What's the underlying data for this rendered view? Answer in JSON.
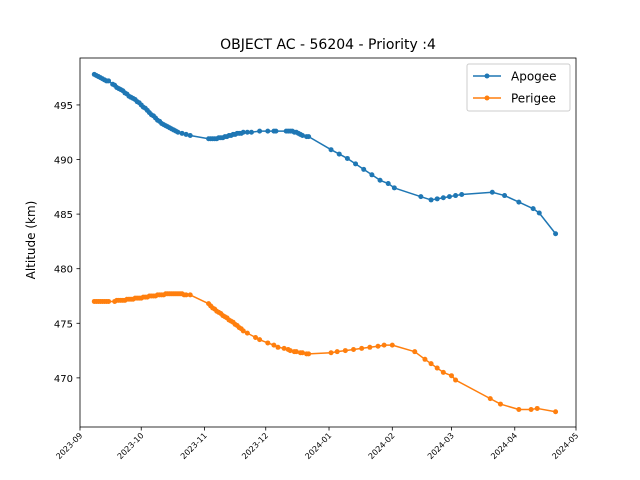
{
  "chart_data": {
    "type": "line",
    "title": "OBJECT AC - 56204 - Priority :4",
    "xlabel": "",
    "ylabel": "Altitude (km)",
    "x_axis_type": "date",
    "xlim": [
      "2023-09-01",
      "2024-05-01"
    ],
    "ylim": [
      465.5,
      499.3
    ],
    "x_ticks": [
      "2023-09",
      "2023-10",
      "2023-11",
      "2023-12",
      "2024-01",
      "2024-02",
      "2024-03",
      "2024-04",
      "2024-05"
    ],
    "y_ticks": [
      470,
      475,
      480,
      485,
      490,
      495
    ],
    "grid": false,
    "legend_position": "top-right",
    "series": [
      {
        "name": "Apogee",
        "color": "#1f77b4",
        "marker": "dot",
        "points": [
          [
            "2023-09-08",
            497.8
          ],
          [
            "2023-09-09",
            497.7
          ],
          [
            "2023-09-10",
            497.6
          ],
          [
            "2023-09-11",
            497.5
          ],
          [
            "2023-09-12",
            497.4
          ],
          [
            "2023-09-13",
            497.3
          ],
          [
            "2023-09-14",
            497.2
          ],
          [
            "2023-09-15",
            497.2
          ],
          [
            "2023-09-17",
            496.9
          ],
          [
            "2023-09-18",
            496.8
          ],
          [
            "2023-09-19",
            496.6
          ],
          [
            "2023-09-20",
            496.5
          ],
          [
            "2023-09-21",
            496.4
          ],
          [
            "2023-09-22",
            496.3
          ],
          [
            "2023-09-23",
            496.1
          ],
          [
            "2023-09-24",
            496.0
          ],
          [
            "2023-09-25",
            495.8
          ],
          [
            "2023-09-26",
            495.7
          ],
          [
            "2023-09-27",
            495.6
          ],
          [
            "2023-09-28",
            495.5
          ],
          [
            "2023-09-29",
            495.3
          ],
          [
            "2023-09-30",
            495.2
          ],
          [
            "2023-10-01",
            495.0
          ],
          [
            "2023-10-02",
            494.8
          ],
          [
            "2023-10-03",
            494.7
          ],
          [
            "2023-10-04",
            494.5
          ],
          [
            "2023-10-05",
            494.3
          ],
          [
            "2023-10-06",
            494.1
          ],
          [
            "2023-10-07",
            494.0
          ],
          [
            "2023-10-08",
            493.8
          ],
          [
            "2023-10-09",
            493.6
          ],
          [
            "2023-10-10",
            493.5
          ],
          [
            "2023-10-11",
            493.3
          ],
          [
            "2023-10-12",
            493.2
          ],
          [
            "2023-10-13",
            493.1
          ],
          [
            "2023-10-14",
            493.0
          ],
          [
            "2023-10-15",
            492.9
          ],
          [
            "2023-10-16",
            492.8
          ],
          [
            "2023-10-17",
            492.7
          ],
          [
            "2023-10-18",
            492.6
          ],
          [
            "2023-10-19",
            492.5
          ],
          [
            "2023-10-21",
            492.4
          ],
          [
            "2023-10-23",
            492.3
          ],
          [
            "2023-10-25",
            492.2
          ],
          [
            "2023-11-03",
            491.9
          ],
          [
            "2023-11-04",
            491.9
          ],
          [
            "2023-11-05",
            491.9
          ],
          [
            "2023-11-06",
            491.9
          ],
          [
            "2023-11-07",
            491.9
          ],
          [
            "2023-11-08",
            492.0
          ],
          [
            "2023-11-09",
            492.0
          ],
          [
            "2023-11-10",
            492.0
          ],
          [
            "2023-11-11",
            492.1
          ],
          [
            "2023-11-12",
            492.1
          ],
          [
            "2023-11-13",
            492.2
          ],
          [
            "2023-11-14",
            492.2
          ],
          [
            "2023-11-15",
            492.3
          ],
          [
            "2023-11-16",
            492.3
          ],
          [
            "2023-11-17",
            492.4
          ],
          [
            "2023-11-18",
            492.4
          ],
          [
            "2023-11-19",
            492.4
          ],
          [
            "2023-11-20",
            492.5
          ],
          [
            "2023-11-22",
            492.5
          ],
          [
            "2023-11-24",
            492.5
          ],
          [
            "2023-11-28",
            492.6
          ],
          [
            "2023-12-02",
            492.6
          ],
          [
            "2023-12-05",
            492.6
          ],
          [
            "2023-12-06",
            492.6
          ],
          [
            "2023-12-11",
            492.6
          ],
          [
            "2023-12-12",
            492.6
          ],
          [
            "2023-12-13",
            492.6
          ],
          [
            "2023-12-14",
            492.6
          ],
          [
            "2023-12-15",
            492.5
          ],
          [
            "2023-12-16",
            492.5
          ],
          [
            "2023-12-17",
            492.4
          ],
          [
            "2023-12-18",
            492.3
          ],
          [
            "2023-12-19",
            492.2
          ],
          [
            "2023-12-21",
            492.1
          ],
          [
            "2023-12-22",
            492.1
          ],
          [
            "2024-01-02",
            490.9
          ],
          [
            "2024-01-06",
            490.5
          ],
          [
            "2024-01-10",
            490.1
          ],
          [
            "2024-01-14",
            489.6
          ],
          [
            "2024-01-18",
            489.1
          ],
          [
            "2024-01-22",
            488.6
          ],
          [
            "2024-01-26",
            488.1
          ],
          [
            "2024-01-30",
            487.8
          ],
          [
            "2024-02-02",
            487.4
          ],
          [
            "2024-02-15",
            486.6
          ],
          [
            "2024-02-20",
            486.3
          ],
          [
            "2024-02-23",
            486.4
          ],
          [
            "2024-02-26",
            486.5
          ],
          [
            "2024-02-29",
            486.6
          ],
          [
            "2024-03-03",
            486.7
          ],
          [
            "2024-03-06",
            486.8
          ],
          [
            "2024-03-21",
            487.0
          ],
          [
            "2024-03-27",
            486.7
          ],
          [
            "2024-04-03",
            486.1
          ],
          [
            "2024-04-10",
            485.5
          ],
          [
            "2024-04-13",
            485.1
          ],
          [
            "2024-04-21",
            483.2
          ]
        ]
      },
      {
        "name": "Perigee",
        "color": "#ff7f0e",
        "marker": "dot",
        "points": [
          [
            "2023-09-08",
            477.0
          ],
          [
            "2023-09-09",
            477.0
          ],
          [
            "2023-09-10",
            477.0
          ],
          [
            "2023-09-11",
            477.0
          ],
          [
            "2023-09-12",
            477.0
          ],
          [
            "2023-09-13",
            477.0
          ],
          [
            "2023-09-14",
            477.0
          ],
          [
            "2023-09-15",
            477.0
          ],
          [
            "2023-09-18",
            477.0
          ],
          [
            "2023-09-19",
            477.1
          ],
          [
            "2023-09-20",
            477.1
          ],
          [
            "2023-09-21",
            477.1
          ],
          [
            "2023-09-22",
            477.1
          ],
          [
            "2023-09-23",
            477.1
          ],
          [
            "2023-09-24",
            477.2
          ],
          [
            "2023-09-25",
            477.2
          ],
          [
            "2023-09-26",
            477.2
          ],
          [
            "2023-09-27",
            477.2
          ],
          [
            "2023-09-28",
            477.3
          ],
          [
            "2023-09-29",
            477.3
          ],
          [
            "2023-09-30",
            477.3
          ],
          [
            "2023-10-01",
            477.3
          ],
          [
            "2023-10-02",
            477.4
          ],
          [
            "2023-10-03",
            477.4
          ],
          [
            "2023-10-04",
            477.4
          ],
          [
            "2023-10-05",
            477.5
          ],
          [
            "2023-10-06",
            477.5
          ],
          [
            "2023-10-07",
            477.5
          ],
          [
            "2023-10-08",
            477.5
          ],
          [
            "2023-10-09",
            477.6
          ],
          [
            "2023-10-10",
            477.6
          ],
          [
            "2023-10-11",
            477.6
          ],
          [
            "2023-10-12",
            477.6
          ],
          [
            "2023-10-13",
            477.7
          ],
          [
            "2023-10-14",
            477.7
          ],
          [
            "2023-10-15",
            477.7
          ],
          [
            "2023-10-16",
            477.7
          ],
          [
            "2023-10-17",
            477.7
          ],
          [
            "2023-10-18",
            477.7
          ],
          [
            "2023-10-19",
            477.7
          ],
          [
            "2023-10-20",
            477.7
          ],
          [
            "2023-10-21",
            477.7
          ],
          [
            "2023-10-22",
            477.6
          ],
          [
            "2023-10-23",
            477.6
          ],
          [
            "2023-10-25",
            477.6
          ],
          [
            "2023-11-03",
            476.8
          ],
          [
            "2023-11-04",
            476.6
          ],
          [
            "2023-11-05",
            476.4
          ],
          [
            "2023-11-06",
            476.3
          ],
          [
            "2023-11-07",
            476.1
          ],
          [
            "2023-11-08",
            476.0
          ],
          [
            "2023-11-09",
            475.9
          ],
          [
            "2023-11-10",
            475.7
          ],
          [
            "2023-11-11",
            475.6
          ],
          [
            "2023-11-12",
            475.5
          ],
          [
            "2023-11-13",
            475.3
          ],
          [
            "2023-11-14",
            475.2
          ],
          [
            "2023-11-15",
            475.1
          ],
          [
            "2023-11-16",
            474.9
          ],
          [
            "2023-11-17",
            474.8
          ],
          [
            "2023-11-18",
            474.6
          ],
          [
            "2023-11-19",
            474.5
          ],
          [
            "2023-11-20",
            474.3
          ],
          [
            "2023-11-22",
            474.1
          ],
          [
            "2023-11-26",
            473.7
          ],
          [
            "2023-11-28",
            473.5
          ],
          [
            "2023-12-02",
            473.2
          ],
          [
            "2023-12-05",
            473.0
          ],
          [
            "2023-12-07",
            472.8
          ],
          [
            "2023-12-10",
            472.7
          ],
          [
            "2023-12-12",
            472.6
          ],
          [
            "2023-12-13",
            472.5
          ],
          [
            "2023-12-15",
            472.4
          ],
          [
            "2023-12-16",
            472.4
          ],
          [
            "2023-12-18",
            472.3
          ],
          [
            "2023-12-19",
            472.3
          ],
          [
            "2023-12-21",
            472.2
          ],
          [
            "2023-12-22",
            472.2
          ],
          [
            "2024-01-02",
            472.3
          ],
          [
            "2024-01-05",
            472.4
          ],
          [
            "2024-01-09",
            472.5
          ],
          [
            "2024-01-13",
            472.6
          ],
          [
            "2024-01-17",
            472.7
          ],
          [
            "2024-01-21",
            472.8
          ],
          [
            "2024-01-25",
            472.9
          ],
          [
            "2024-01-28",
            473.0
          ],
          [
            "2024-02-01",
            473.0
          ],
          [
            "2024-02-12",
            472.4
          ],
          [
            "2024-02-17",
            471.7
          ],
          [
            "2024-02-20",
            471.3
          ],
          [
            "2024-02-23",
            470.9
          ],
          [
            "2024-02-26",
            470.5
          ],
          [
            "2024-03-01",
            470.2
          ],
          [
            "2024-03-03",
            469.8
          ],
          [
            "2024-03-20",
            468.1
          ],
          [
            "2024-03-25",
            467.6
          ],
          [
            "2024-04-03",
            467.1
          ],
          [
            "2024-04-09",
            467.1
          ],
          [
            "2024-04-12",
            467.2
          ],
          [
            "2024-04-21",
            466.9
          ]
        ]
      }
    ]
  }
}
